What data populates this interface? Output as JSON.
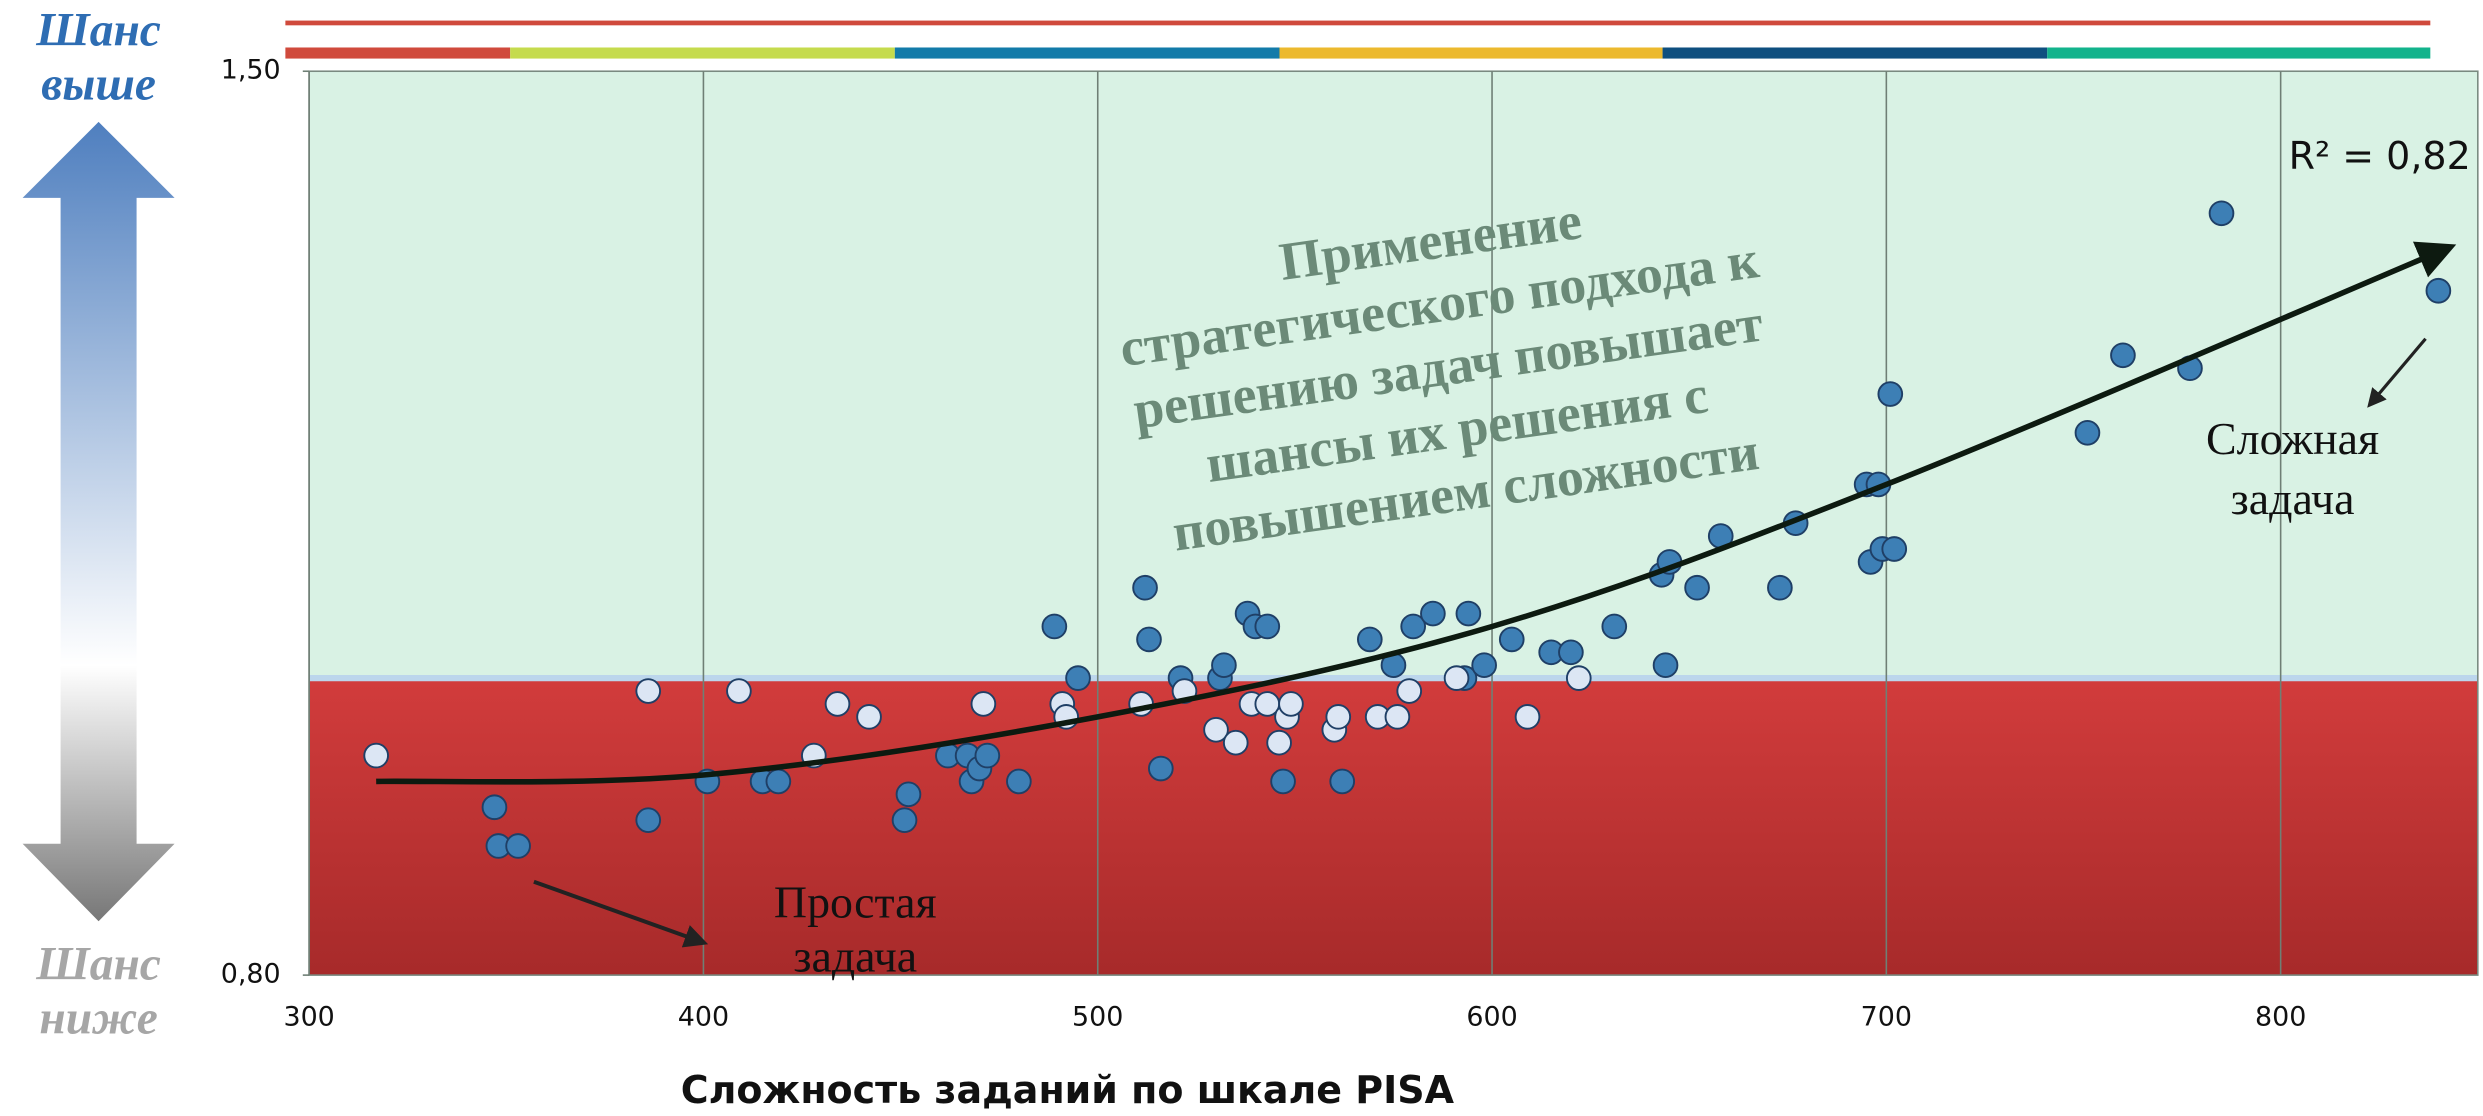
{
  "chart_data": {
    "type": "scatter",
    "side_labels": {
      "top": [
        "Шанс",
        "выше"
      ],
      "bottom": [
        "Шанс",
        "ниже"
      ]
    },
    "xlabel": "Сложность заданий по шкале PISA",
    "xlim": [
      300,
      850
    ],
    "ylim": [
      0.8,
      1.5
    ],
    "xticks": [
      300,
      400,
      500,
      600,
      700,
      800
    ],
    "yticks": [
      {
        "value": 1.5,
        "label": "1,50"
      },
      {
        "value": 0.8,
        "label": "0,80"
      }
    ],
    "grid": true,
    "threshold": 1.03,
    "series": [
      {
        "color": "#3d7fb5",
        "x": [
          347,
          348,
          353,
          386,
          401,
          415,
          419,
          451,
          452,
          462,
          467,
          468,
          470,
          472,
          480,
          489,
          495,
          512,
          513,
          516,
          521,
          531,
          532,
          538,
          540,
          543,
          547,
          562,
          569,
          575,
          580,
          585,
          594,
          593,
          598,
          605,
          615,
          620,
          631,
          644,
          643,
          645,
          652,
          658,
          673,
          677,
          695,
          698,
          696,
          699,
          702,
          701,
          751,
          760,
          777,
          785,
          840
        ],
        "values": [
          0.93,
          0.9,
          0.9,
          0.92,
          0.95,
          0.95,
          0.95,
          0.92,
          0.94,
          0.97,
          0.97,
          0.95,
          0.96,
          0.97,
          0.95,
          1.07,
          1.03,
          1.1,
          1.06,
          0.96,
          1.03,
          1.03,
          1.04,
          1.08,
          1.07,
          1.07,
          0.95,
          0.95,
          1.06,
          1.04,
          1.07,
          1.08,
          1.08,
          1.03,
          1.04,
          1.06,
          1.05,
          1.05,
          1.07,
          1.04,
          1.11,
          1.12,
          1.1,
          1.14,
          1.1,
          1.15,
          1.18,
          1.18,
          1.12,
          1.13,
          1.13,
          1.25,
          1.22,
          1.28,
          1.27,
          1.39,
          1.33
        ]
      },
      {
        "color": "#dce6f4",
        "x": [
          317,
          386,
          409,
          434,
          442,
          428,
          471,
          491,
          492,
          511,
          522,
          530,
          535,
          539,
          543,
          546,
          548,
          549,
          560,
          561,
          571,
          576,
          579,
          591,
          609,
          622
        ],
        "values": [
          0.97,
          1.02,
          1.02,
          1.01,
          1.0,
          0.97,
          1.01,
          1.01,
          1.0,
          1.01,
          1.02,
          0.99,
          0.98,
          1.01,
          1.01,
          0.98,
          1.0,
          1.01,
          0.99,
          1.0,
          1.0,
          1.0,
          1.02,
          1.03,
          1.0,
          1.03
        ]
      }
    ],
    "trend": {
      "color": "#0d1a10",
      "x": [
        317,
        400,
        500,
        600,
        700,
        840
      ],
      "values": [
        0.95,
        0.955,
        1.0,
        1.07,
        1.18,
        1.36
      ]
    },
    "r_squared": "R² = 0,82",
    "annotations": {
      "main": [
        "Применение",
        "стратегического подхода к",
        "решению задач повышает",
        "шансы их решения с",
        "повышением сложности"
      ],
      "hard": [
        "Сложная",
        "задача"
      ],
      "easy": [
        "Простая",
        "задача"
      ]
    }
  }
}
